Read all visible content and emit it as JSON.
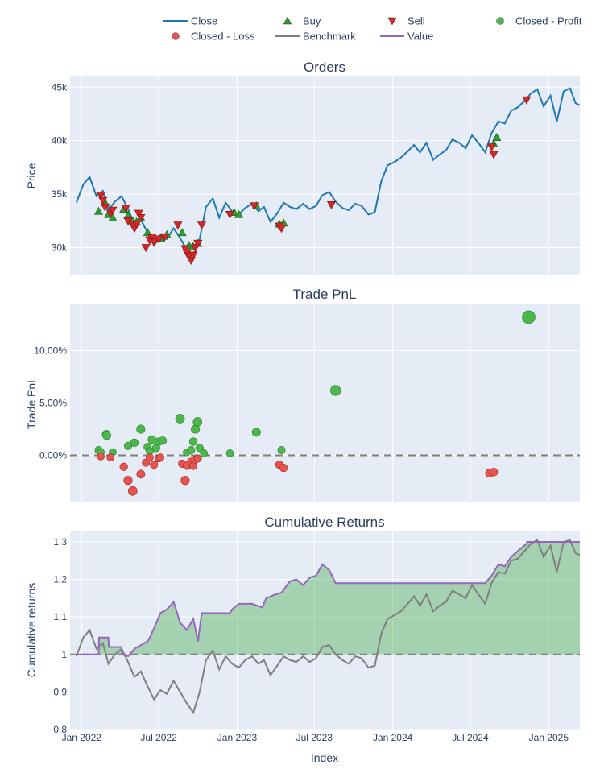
{
  "chart_data": [
    {
      "type": "line",
      "title": "Orders",
      "ylabel": "Price",
      "ylim": [
        27400,
        46000
      ],
      "yticks": [
        30000,
        35000,
        40000,
        45000
      ],
      "ytick_labels": [
        "30k",
        "35k",
        "40k",
        "45k"
      ],
      "series": [
        {
          "name": "Close",
          "color": "#1f77b4",
          "x": [
            "2021-12-20",
            "2022-01-05",
            "2022-01-20",
            "2022-02-05",
            "2022-02-20",
            "2022-03-05",
            "2022-03-20",
            "2022-04-05",
            "2022-04-20",
            "2022-05-05",
            "2022-05-20",
            "2022-06-05",
            "2022-06-20",
            "2022-07-05",
            "2022-07-20",
            "2022-08-05",
            "2022-08-20",
            "2022-09-05",
            "2022-09-20",
            "2022-10-05",
            "2022-10-20",
            "2022-11-05",
            "2022-11-20",
            "2022-12-05",
            "2022-12-20",
            "2023-01-05",
            "2023-01-20",
            "2023-02-05",
            "2023-02-20",
            "2023-03-05",
            "2023-03-20",
            "2023-04-05",
            "2023-04-20",
            "2023-05-05",
            "2023-05-20",
            "2023-06-05",
            "2023-06-20",
            "2023-07-05",
            "2023-07-20",
            "2023-08-05",
            "2023-08-20",
            "2023-09-05",
            "2023-09-20",
            "2023-10-05",
            "2023-10-20",
            "2023-11-05",
            "2023-11-20",
            "2023-12-05",
            "2023-12-20",
            "2024-01-05",
            "2024-01-20",
            "2024-02-05",
            "2024-02-20",
            "2024-03-05",
            "2024-03-20",
            "2024-04-05",
            "2024-04-20",
            "2024-05-05",
            "2024-05-20",
            "2024-06-05",
            "2024-06-20",
            "2024-07-05",
            "2024-07-20",
            "2024-08-05",
            "2024-08-20",
            "2024-09-05",
            "2024-09-20",
            "2024-10-05",
            "2024-10-20",
            "2024-11-05",
            "2024-11-20",
            "2024-12-05",
            "2024-12-20",
            "2025-01-05",
            "2025-01-20",
            "2025-02-05",
            "2025-02-20",
            "2025-03-05",
            "2025-03-15"
          ],
          "y": [
            34200,
            35900,
            36600,
            34800,
            35300,
            33500,
            34300,
            34800,
            33600,
            32200,
            32600,
            31400,
            30200,
            31100,
            30800,
            31800,
            30900,
            29800,
            29200,
            30800,
            33800,
            34600,
            32800,
            34200,
            33400,
            33100,
            33700,
            34100,
            33400,
            33800,
            32400,
            33200,
            34200,
            33800,
            33600,
            34100,
            33600,
            33900,
            34900,
            35200,
            34300,
            33700,
            33500,
            34100,
            33900,
            33100,
            33300,
            36200,
            37700,
            38000,
            38400,
            39000,
            39600,
            38900,
            39800,
            38200,
            38700,
            39100,
            40100,
            39800,
            39300,
            40500,
            39800,
            38900,
            40700,
            41800,
            41600,
            42800,
            43100,
            43700,
            44400,
            44800,
            43200,
            44200,
            41800,
            44600,
            44900,
            43500,
            43300
          ]
        },
        {
          "name": "Buy",
          "color": "#2ca02c",
          "marker": "triangle-up",
          "x": [
            "2022-02-10",
            "2022-02-25",
            "2022-03-05",
            "2022-03-15",
            "2022-04-10",
            "2022-04-20",
            "2022-05-01",
            "2022-05-10",
            "2022-05-20",
            "2022-06-05",
            "2022-06-15",
            "2022-07-05",
            "2022-07-20",
            "2022-08-25",
            "2022-09-10",
            "2022-09-20",
            "2022-10-01",
            "2022-12-25",
            "2023-01-05",
            "2023-02-15",
            "2023-04-10",
            "2023-04-20",
            "2024-08-25",
            "2024-09-01"
          ],
          "y": [
            33400,
            34200,
            33100,
            32800,
            33600,
            33000,
            32500,
            32400,
            32800,
            31400,
            30800,
            30900,
            31200,
            31400,
            30200,
            30100,
            30400,
            33300,
            33100,
            33900,
            32200,
            32300,
            39700,
            40300
          ]
        },
        {
          "name": "Sell",
          "color": "#d62728",
          "marker": "triangle-down",
          "x": [
            "2022-02-15",
            "2022-02-20",
            "2022-02-25",
            "2022-03-10",
            "2022-03-15",
            "2022-04-15",
            "2022-04-20",
            "2022-05-01",
            "2022-05-05",
            "2022-05-10",
            "2022-05-15",
            "2022-05-20",
            "2022-06-01",
            "2022-06-10",
            "2022-06-15",
            "2022-06-20",
            "2022-07-01",
            "2022-07-15",
            "2022-08-15",
            "2022-09-01",
            "2022-09-05",
            "2022-09-10",
            "2022-09-15",
            "2022-09-20",
            "2022-09-25",
            "2022-10-01",
            "2022-10-10",
            "2022-12-15",
            "2023-02-10",
            "2023-04-10",
            "2023-04-15",
            "2023-08-10",
            "2024-08-20",
            "2024-08-25",
            "2024-11-10"
          ],
          "y": [
            34900,
            34400,
            33800,
            33200,
            33500,
            33700,
            32500,
            32200,
            31800,
            32200,
            33200,
            32800,
            30000,
            30700,
            30900,
            30500,
            30800,
            31000,
            32100,
            29900,
            29500,
            29200,
            28800,
            29300,
            30000,
            30400,
            32100,
            33100,
            33900,
            32000,
            31800,
            34000,
            39400,
            38700,
            43800
          ]
        },
        {
          "name": "Closed - Profit",
          "color": "#4cb84c"
        },
        {
          "name": "Closed - Loss",
          "color": "#e8534e"
        }
      ]
    },
    {
      "type": "scatter",
      "title": "Trade PnL",
      "ylabel": "Trade PnL",
      "ylim": [
        -0.045,
        0.145
      ],
      "yticks": [
        0,
        0.05,
        0.1
      ],
      "ytick_labels": [
        "0.00%",
        "5.00%",
        "10.00%"
      ],
      "baseline": 0,
      "series": [
        {
          "name": "Closed - Profit",
          "color": "#4cb84c",
          "x": [
            "2022-02-10",
            "2022-02-15",
            "2022-02-28",
            "2022-03-01",
            "2022-03-15",
            "2022-04-20",
            "2022-05-05",
            "2022-05-20",
            "2022-06-05",
            "2022-06-10",
            "2022-06-15",
            "2022-06-25",
            "2022-07-01",
            "2022-07-10",
            "2022-08-20",
            "2022-09-05",
            "2022-09-15",
            "2022-09-20",
            "2022-09-25",
            "2022-09-30",
            "2022-10-05",
            "2022-10-15",
            "2022-12-15",
            "2023-02-15",
            "2023-04-15",
            "2023-08-20",
            "2024-11-15"
          ],
          "y": [
            0.005,
            0.003,
            0.02,
            0.019,
            0.003,
            0.009,
            0.012,
            0.025,
            0.008,
            0.004,
            0.015,
            0.007,
            0.013,
            0.014,
            0.035,
            0.003,
            0.005,
            0.013,
            0.025,
            0.032,
            0.007,
            0.002,
            0.002,
            0.022,
            0.005,
            0.062,
            0.132
          ]
        },
        {
          "name": "Closed - Loss",
          "color": "#e8534e",
          "x": [
            "2022-02-15",
            "2022-03-10",
            "2022-04-10",
            "2022-04-20",
            "2022-05-01",
            "2022-05-20",
            "2022-06-01",
            "2022-06-10",
            "2022-06-20",
            "2022-07-01",
            "2022-07-05",
            "2022-08-25",
            "2022-09-01",
            "2022-09-05",
            "2022-09-15",
            "2022-09-20",
            "2022-09-25",
            "2022-10-01",
            "2023-04-10",
            "2023-04-20",
            "2024-08-15",
            "2024-08-25"
          ],
          "y": [
            -0.001,
            -0.002,
            -0.011,
            -0.024,
            -0.034,
            -0.018,
            -0.007,
            -0.002,
            -0.009,
            -0.003,
            -0.002,
            -0.008,
            -0.024,
            -0.01,
            -0.006,
            -0.01,
            -0.004,
            -0.003,
            -0.009,
            -0.012,
            -0.017,
            -0.016
          ]
        }
      ]
    },
    {
      "type": "area",
      "title": "Cumulative Returns",
      "ylabel": "Cumulative returns",
      "xlabel": "Index",
      "ylim": [
        0.8,
        1.33
      ],
      "yticks": [
        0.8,
        0.9,
        1,
        1.1,
        1.2,
        1.3
      ],
      "ytick_labels": [
        "0.8",
        "0.9",
        "1",
        "1.1",
        "1.2",
        "1.3"
      ],
      "baseline": 1,
      "series": [
        {
          "name": "Benchmark",
          "color": "#7f7f7f",
          "x": [
            "2021-12-20",
            "2022-01-05",
            "2022-01-20",
            "2022-02-05",
            "2022-02-20",
            "2022-03-05",
            "2022-03-20",
            "2022-04-05",
            "2022-04-20",
            "2022-05-05",
            "2022-05-20",
            "2022-06-05",
            "2022-06-20",
            "2022-07-05",
            "2022-07-20",
            "2022-08-05",
            "2022-08-20",
            "2022-09-05",
            "2022-09-20",
            "2022-10-05",
            "2022-10-20",
            "2022-11-05",
            "2022-11-20",
            "2022-12-05",
            "2022-12-20",
            "2023-01-05",
            "2023-01-20",
            "2023-02-05",
            "2023-02-20",
            "2023-03-05",
            "2023-03-20",
            "2023-04-05",
            "2023-04-20",
            "2023-05-05",
            "2023-05-20",
            "2023-06-05",
            "2023-06-20",
            "2023-07-05",
            "2023-07-20",
            "2023-08-05",
            "2023-08-20",
            "2023-09-05",
            "2023-09-20",
            "2023-10-05",
            "2023-10-20",
            "2023-11-05",
            "2023-11-20",
            "2023-12-05",
            "2023-12-20",
            "2024-01-05",
            "2024-01-20",
            "2024-02-05",
            "2024-02-20",
            "2024-03-05",
            "2024-03-20",
            "2024-04-05",
            "2024-04-20",
            "2024-05-05",
            "2024-05-20",
            "2024-06-05",
            "2024-06-20",
            "2024-07-05",
            "2024-07-20",
            "2024-08-05",
            "2024-08-20",
            "2024-09-05",
            "2024-09-20",
            "2024-10-05",
            "2024-10-20",
            "2024-11-05",
            "2024-11-20",
            "2024-12-05",
            "2024-12-20",
            "2025-01-05",
            "2025-01-20",
            "2025-02-05",
            "2025-02-20",
            "2025-03-05",
            "2025-03-15"
          ],
          "y": [
            0.995,
            1.045,
            1.065,
            1.015,
            1.03,
            0.975,
            1.0,
            1.015,
            0.98,
            0.94,
            0.955,
            0.915,
            0.88,
            0.905,
            0.895,
            0.93,
            0.9,
            0.87,
            0.845,
            0.9,
            0.985,
            1.01,
            0.96,
            0.995,
            0.975,
            0.965,
            0.985,
            0.995,
            0.975,
            0.985,
            0.945,
            0.97,
            0.995,
            0.985,
            0.98,
            0.995,
            0.98,
            0.99,
            1.02,
            1.025,
            1.0,
            0.985,
            0.975,
            0.995,
            0.99,
            0.965,
            0.97,
            1.055,
            1.095,
            1.105,
            1.115,
            1.135,
            1.155,
            1.13,
            1.16,
            1.115,
            1.13,
            1.14,
            1.17,
            1.16,
            1.15,
            1.185,
            1.16,
            1.135,
            1.19,
            1.22,
            1.215,
            1.25,
            1.255,
            1.275,
            1.295,
            1.305,
            1.26,
            1.29,
            1.22,
            1.3,
            1.305,
            1.27,
            1.265
          ]
        },
        {
          "name": "Value",
          "color": "#9467bd",
          "x": [
            "2021-12-20",
            "2022-01-20",
            "2022-02-01",
            "2022-02-10",
            "2022-02-11",
            "2022-03-05",
            "2022-03-06",
            "2022-04-05",
            "2022-04-06",
            "2022-04-20",
            "2022-05-05",
            "2022-05-20",
            "2022-06-05",
            "2022-06-10",
            "2022-06-20",
            "2022-07-05",
            "2022-07-20",
            "2022-08-05",
            "2022-08-20",
            "2022-09-05",
            "2022-09-20",
            "2022-10-01",
            "2022-10-10",
            "2022-11-05",
            "2022-12-15",
            "2022-12-20",
            "2023-01-05",
            "2023-02-05",
            "2023-03-01",
            "2023-03-10",
            "2023-04-01",
            "2023-04-15",
            "2023-05-05",
            "2023-05-20",
            "2023-06-05",
            "2023-06-20",
            "2023-07-05",
            "2023-07-20",
            "2023-08-05",
            "2023-08-20",
            "2023-09-01",
            "2024-07-20",
            "2024-08-05",
            "2024-08-20",
            "2024-09-05",
            "2024-09-20",
            "2024-10-05",
            "2024-10-20",
            "2024-11-10",
            "2024-11-11",
            "2025-03-15"
          ],
          "y": [
            1.0,
            1.0,
            1.0,
            1.0,
            1.045,
            1.045,
            1.02,
            1.02,
            1.0,
            0.995,
            1.015,
            1.025,
            1.035,
            1.045,
            1.07,
            1.11,
            1.12,
            1.14,
            1.085,
            1.065,
            1.095,
            1.035,
            1.11,
            1.11,
            1.11,
            1.12,
            1.135,
            1.135,
            1.125,
            1.15,
            1.16,
            1.165,
            1.195,
            1.2,
            1.185,
            1.205,
            1.21,
            1.24,
            1.225,
            1.19,
            1.19,
            1.19,
            1.19,
            1.21,
            1.24,
            1.235,
            1.26,
            1.275,
            1.295,
            1.3,
            1.3
          ]
        }
      ],
      "fill_color": "#2ca02c"
    }
  ],
  "x_axis": {
    "range": [
      "2021-12-05",
      "2025-03-15"
    ],
    "ticks": [
      "2022-01-01",
      "2022-07-01",
      "2023-01-01",
      "2023-07-01",
      "2024-01-01",
      "2024-07-01",
      "2025-01-01"
    ],
    "tick_labels": [
      "Jan 2022",
      "Jul 2022",
      "Jan 2023",
      "Jul 2023",
      "Jan 2024",
      "Jul 2024",
      "Jan 2025"
    ],
    "title": "Index"
  },
  "legend": {
    "items": [
      {
        "name": "Close",
        "color": "#1f77b4",
        "symbol": "line"
      },
      {
        "name": "Buy",
        "color": "#2ca02c",
        "symbol": "triangle-up"
      },
      {
        "name": "Sell",
        "color": "#d62728",
        "symbol": "triangle-down"
      },
      {
        "name": "Closed - Profit",
        "color": "#4cb84c",
        "symbol": "circle"
      },
      {
        "name": "Closed - Loss",
        "color": "#e8534e",
        "symbol": "circle"
      },
      {
        "name": "Benchmark",
        "color": "#7f7f7f",
        "symbol": "line"
      },
      {
        "name": "Value",
        "color": "#9467bd",
        "symbol": "line"
      }
    ]
  },
  "colors": {
    "plot_bg": "#e5ecf6",
    "grid": "#ffffff",
    "text": "#2a3f5f",
    "baseline": "#808080"
  }
}
